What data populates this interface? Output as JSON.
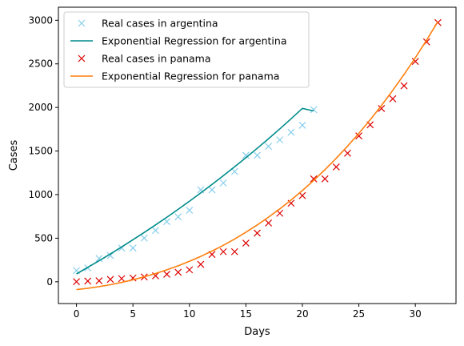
{
  "chart_data": {
    "type": "line",
    "xlabel": "Days",
    "ylabel": "Cases",
    "xlim": [
      -1.6,
      33.6
    ],
    "ylim": [
      -250,
      3150
    ],
    "xticks": [
      0,
      5,
      10,
      15,
      20,
      25,
      30
    ],
    "yticks": [
      0,
      500,
      1000,
      1500,
      2000,
      2500,
      3000
    ],
    "legend_position": "upper-left",
    "series": [
      {
        "name": "Real cases in argentina",
        "kind": "scatter",
        "marker": "x",
        "color": "#87ceeb",
        "x": [
          0,
          1,
          2,
          3,
          4,
          5,
          6,
          7,
          8,
          9,
          10,
          11,
          12,
          13,
          14,
          15,
          16,
          17,
          18,
          19,
          20,
          21
        ],
        "y": [
          128,
          158,
          266,
          301,
          387,
          387,
          502,
          589,
          690,
          745,
          820,
          1054,
          1054,
          1133,
          1265,
          1451,
          1451,
          1554,
          1628,
          1715,
          1795,
          1975
        ]
      },
      {
        "name": "Exponential Regression for argentina",
        "kind": "line",
        "color": "#008b8b",
        "x": [
          0,
          1,
          2,
          3,
          4,
          5,
          6,
          7,
          8,
          9,
          10,
          11,
          12,
          13,
          14,
          15,
          16,
          17,
          18,
          19,
          20,
          21
        ],
        "y": [
          90,
          165,
          241,
          319,
          400,
          482,
          566,
          652,
          740,
          831,
          924,
          1019,
          1117,
          1217,
          1319,
          1424,
          1531,
          1641,
          1754,
          1870,
          1989,
          1960
        ]
      },
      {
        "name": "Real cases in panama",
        "kind": "scatter",
        "marker": "x",
        "color": "#dd0000",
        "x": [
          0,
          1,
          2,
          3,
          4,
          5,
          6,
          7,
          8,
          9,
          10,
          11,
          12,
          13,
          14,
          15,
          16,
          17,
          18,
          19,
          20,
          21,
          22,
          23,
          24,
          25,
          26,
          27,
          28,
          29,
          30,
          31,
          32
        ],
        "y": [
          1,
          8,
          11,
          27,
          36,
          43,
          55,
          69,
          86,
          109,
          137,
          200,
          313,
          345,
          345,
          443,
          558,
          674,
          786,
          901,
          989,
          1181,
          1181,
          1317,
          1475,
          1673,
          1801,
          1988,
          2100,
          2249,
          2528,
          2752,
          2974
        ]
      },
      {
        "name": "Exponential Regression for panama",
        "kind": "line",
        "color": "#ff7f0e",
        "x": [
          0,
          1,
          2,
          3,
          4,
          5,
          6,
          7,
          8,
          9,
          10,
          11,
          12,
          13,
          14,
          15,
          16,
          17,
          18,
          19,
          20,
          21,
          22,
          23,
          24,
          25,
          26,
          27,
          28,
          29,
          30,
          31,
          32
        ],
        "y": [
          -90,
          -75,
          -56,
          -34,
          -7,
          23,
          57,
          95,
          137,
          183,
          235,
          291,
          352,
          418,
          490,
          568,
          651,
          741,
          836,
          938,
          1047,
          1163,
          1286,
          1417,
          1556,
          1703,
          1858,
          2022,
          2196,
          2378,
          2571,
          2773,
          2986
        ]
      }
    ]
  }
}
